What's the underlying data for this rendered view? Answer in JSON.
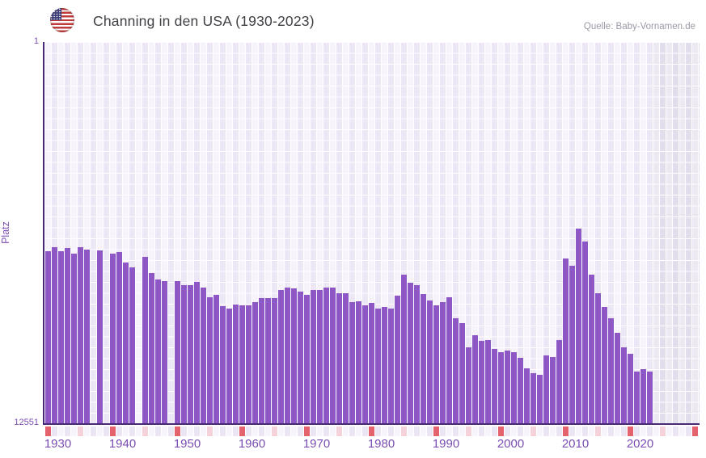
{
  "header": {
    "title": "Channing in den USA (1930-2023)",
    "source": "Quelle: Baby-Vornamen.de",
    "flag": "us-flag"
  },
  "chart_data": {
    "type": "bar",
    "title": "Channing in den USA (1930-2023)",
    "xlabel": "",
    "ylabel": "Platz",
    "y_axis": {
      "min": 1,
      "max": 12551,
      "inverted": true,
      "tick_labels": [
        "1",
        "12551"
      ]
    },
    "x_range": [
      1930,
      2031
    ],
    "x_ticks": [
      1930,
      1940,
      1950,
      1960,
      1970,
      1980,
      1990,
      2000,
      2010,
      2020
    ],
    "years_start": 1930,
    "years_end": 2023,
    "no_data_from": 2024,
    "legend": "none",
    "grid": true,
    "ranks": [
      6890,
      6760,
      6890,
      6790,
      6970,
      6740,
      6840,
      null,
      6870,
      null,
      6960,
      6910,
      7250,
      7430,
      null,
      7070,
      7600,
      7830,
      7880,
      null,
      7860,
      7990,
      7990,
      7900,
      8090,
      8400,
      8310,
      8690,
      8780,
      8650,
      8680,
      8680,
      8570,
      8420,
      8420,
      8420,
      8170,
      8070,
      8120,
      8220,
      8310,
      8170,
      8170,
      8090,
      8090,
      8270,
      8270,
      8570,
      8540,
      8660,
      8600,
      8780,
      8710,
      8780,
      8340,
      7650,
      7910,
      7990,
      8290,
      8520,
      8670,
      8570,
      8390,
      9100,
      9240,
      10040,
      9640,
      9850,
      9800,
      10100,
      10200,
      10160,
      10200,
      10400,
      10740,
      10910,
      10950,
      10310,
      10380,
      9810,
      7120,
      7360,
      6150,
      6580,
      7670,
      8260,
      8730,
      9080,
      9570,
      10040,
      10270,
      10860,
      10770,
      10840
    ]
  },
  "colors": {
    "bar": "#8d57c6",
    "axis": "#4a2878",
    "tick_text": "#7a4db3",
    "title_text": "#3f3f46",
    "source_text": "#9c98a6",
    "plot_bg": "#ece6f5",
    "no_data_bg": "#e2ddeb",
    "band_decade": "#e4636f",
    "band_half_decade": "#f3d2da",
    "band_light": "#f7f4fc",
    "band_alt": "#ebe5f3"
  }
}
